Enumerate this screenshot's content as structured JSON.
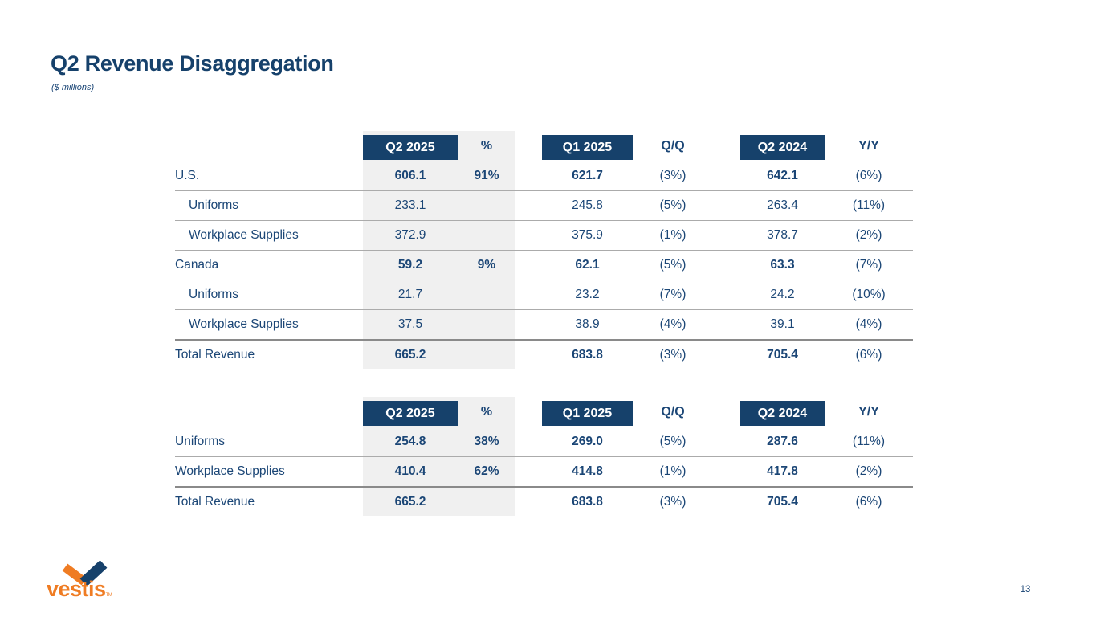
{
  "slide": {
    "title": "Q2 Revenue Disaggregation",
    "subtitle": "($ millions)",
    "page_number": "13",
    "logo_text": "vestis",
    "logo_tm": "TM"
  },
  "colors": {
    "navy": "#16416B",
    "text_navy": "#1B4676",
    "orange": "#EF7C23",
    "column_band": "#F0F0F0"
  },
  "column_headers": [
    {
      "label": "Q2 2025",
      "boxed": true
    },
    {
      "label": "%",
      "boxed": false
    },
    {
      "label": "Q1 2025",
      "boxed": true
    },
    {
      "label": "Q/Q",
      "boxed": false
    },
    {
      "label": "Q2 2024",
      "boxed": true
    },
    {
      "label": "Y/Y",
      "boxed": false
    }
  ],
  "table1": {
    "name": "revenue-by-geography",
    "rows": [
      {
        "label": "U.S.",
        "q2_2025": "606.1",
        "pct": "91%",
        "q1_2025": "621.7",
        "qoq": "(3%)",
        "q2_2024": "642.1",
        "yoy": "(6%)",
        "bold": true,
        "indent": false,
        "total": false
      },
      {
        "label": "Uniforms",
        "q2_2025": "233.1",
        "pct": "",
        "q1_2025": "245.8",
        "qoq": "(5%)",
        "q2_2024": "263.4",
        "yoy": "(11%)",
        "bold": false,
        "indent": true,
        "total": false
      },
      {
        "label": "Workplace Supplies",
        "q2_2025": "372.9",
        "pct": "",
        "q1_2025": "375.9",
        "qoq": "(1%)",
        "q2_2024": "378.7",
        "yoy": "(2%)",
        "bold": false,
        "indent": true,
        "total": false
      },
      {
        "label": "Canada",
        "q2_2025": "59.2",
        "pct": "9%",
        "q1_2025": "62.1",
        "qoq": "(5%)",
        "q2_2024": "63.3",
        "yoy": "(7%)",
        "bold": true,
        "indent": false,
        "total": false
      },
      {
        "label": "Uniforms",
        "q2_2025": "21.7",
        "pct": "",
        "q1_2025": "23.2",
        "qoq": "(7%)",
        "q2_2024": "24.2",
        "yoy": "(10%)",
        "bold": false,
        "indent": true,
        "total": false
      },
      {
        "label": "Workplace Supplies",
        "q2_2025": "37.5",
        "pct": "",
        "q1_2025": "38.9",
        "qoq": "(4%)",
        "q2_2024": "39.1",
        "yoy": "(4%)",
        "bold": false,
        "indent": true,
        "total": false
      },
      {
        "label": "Total Revenue",
        "q2_2025": "665.2",
        "pct": "",
        "q1_2025": "683.8",
        "qoq": "(3%)",
        "q2_2024": "705.4",
        "yoy": "(6%)",
        "bold": true,
        "indent": false,
        "total": true
      }
    ]
  },
  "table2": {
    "name": "revenue-by-segment",
    "rows": [
      {
        "label": "Uniforms",
        "q2_2025": "254.8",
        "pct": "38%",
        "q1_2025": "269.0",
        "qoq": "(5%)",
        "q2_2024": "287.6",
        "yoy": "(11%)",
        "bold": true,
        "indent": false,
        "total": false
      },
      {
        "label": "Workplace Supplies",
        "q2_2025": "410.4",
        "pct": "62%",
        "q1_2025": "414.8",
        "qoq": "(1%)",
        "q2_2024": "417.8",
        "yoy": "(2%)",
        "bold": true,
        "indent": false,
        "total": false
      },
      {
        "label": "Total Revenue",
        "q2_2025": "665.2",
        "pct": "",
        "q1_2025": "683.8",
        "qoq": "(3%)",
        "q2_2024": "705.4",
        "yoy": "(6%)",
        "bold": true,
        "indent": false,
        "total": true
      }
    ]
  }
}
